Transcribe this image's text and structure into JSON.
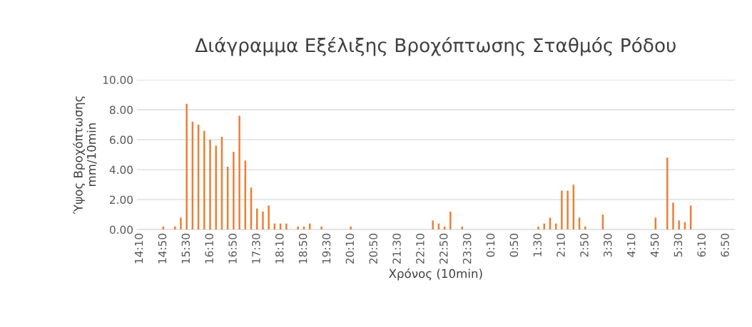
{
  "chart_data": {
    "type": "bar",
    "title": "Διάγραμμα Εξέλιξης Βροχόπτωσης Σταθμός Ρόδου",
    "xlabel": "Χρόνος (10min)",
    "ylabel": "Ύψος Βροχόπτωσης\nmm/10min",
    "categories": [
      "14:10",
      null,
      null,
      null,
      "14:50",
      null,
      null,
      null,
      "15:30",
      null,
      null,
      null,
      "16:10",
      null,
      null,
      null,
      "16:50",
      null,
      null,
      null,
      "17:30",
      null,
      null,
      null,
      "18:10",
      null,
      null,
      null,
      "18:50",
      null,
      null,
      null,
      "19:30",
      null,
      null,
      null,
      "20:10",
      null,
      null,
      null,
      "20:50",
      null,
      null,
      null,
      "21:30",
      null,
      null,
      null,
      "22:10",
      null,
      null,
      null,
      "22:50",
      null,
      null,
      null,
      "23:30",
      null,
      null,
      null,
      "0:10",
      null,
      null,
      null,
      "0:50",
      null,
      null,
      null,
      "1:30",
      null,
      null,
      null,
      "2:10",
      null,
      null,
      null,
      "2:50",
      null,
      null,
      null,
      "3:30",
      null,
      null,
      null,
      "4:10",
      null,
      null,
      null,
      "4:50",
      null,
      null,
      null,
      "5:30",
      null,
      null,
      null,
      "6:10",
      null,
      null,
      null,
      "6:50",
      null
    ],
    "values": [
      0,
      0,
      0,
      0,
      0.2,
      0,
      0.2,
      0.8,
      8.4,
      7.2,
      7.0,
      6.6,
      6.0,
      5.6,
      6.2,
      4.2,
      5.2,
      7.6,
      4.6,
      2.8,
      1.4,
      1.2,
      1.6,
      0.4,
      0.4,
      0.4,
      0,
      0.2,
      0.2,
      0.4,
      0,
      0.2,
      0,
      0,
      0,
      0,
      0.2,
      0,
      0,
      0,
      0,
      0,
      0,
      0,
      0,
      0,
      0,
      0,
      0,
      0,
      0.6,
      0.4,
      0.2,
      1.2,
      0,
      0.2,
      0,
      0,
      0,
      0,
      0,
      0,
      0,
      0,
      0,
      0,
      0,
      0,
      0.2,
      0.4,
      0.8,
      0.4,
      2.6,
      2.6,
      3.0,
      0.8,
      0.2,
      0,
      0,
      1.0,
      0,
      0,
      0,
      0,
      0,
      0,
      0,
      0,
      0.8,
      0,
      4.8,
      1.8,
      0.6,
      0.5,
      1.6,
      0,
      0,
      0,
      0,
      0,
      0,
      0
    ],
    "color": "#ed7d31",
    "ylim": [
      0,
      10
    ],
    "yticks": [
      {
        "value": 0,
        "label": "0.00"
      },
      {
        "value": 2,
        "label": "2.00"
      },
      {
        "value": 4,
        "label": "4.00"
      },
      {
        "value": 6,
        "label": "6.00"
      },
      {
        "value": 8,
        "label": "8.00"
      },
      {
        "value": 10,
        "label": "10.00"
      }
    ],
    "grid": "y",
    "legend": false
  }
}
